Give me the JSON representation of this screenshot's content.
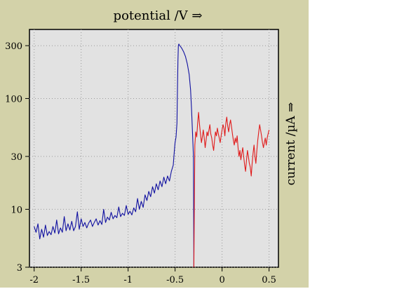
{
  "chart_data": {
    "type": "line",
    "xlabel": "potential /V ⇒",
    "ylabel": "current /µA ⇒",
    "y_scale": "log",
    "xlim": [
      -2.05,
      0.6
    ],
    "ylim": [
      3,
      420
    ],
    "grid": true,
    "x_ticks": [
      {
        "value": -2,
        "label": "-2"
      },
      {
        "value": -1.5,
        "label": "-1.5"
      },
      {
        "value": -1,
        "label": "-1"
      },
      {
        "value": -0.5,
        "label": "-0.5"
      },
      {
        "value": 0,
        "label": "0"
      },
      {
        "value": 0.5,
        "label": "0.5"
      }
    ],
    "y_ticks": [
      {
        "value": 3,
        "label": "3"
      },
      {
        "value": 10,
        "label": "10"
      },
      {
        "value": 30,
        "label": "30"
      },
      {
        "value": 100,
        "label": "100"
      },
      {
        "value": 300,
        "label": "300"
      }
    ],
    "series": [
      {
        "color": "#1010a0",
        "points": [
          [
            -2.0,
            7.0
          ],
          [
            -1.98,
            6.2
          ],
          [
            -1.96,
            7.4
          ],
          [
            -1.94,
            5.4
          ],
          [
            -1.92,
            6.6
          ],
          [
            -1.9,
            5.6
          ],
          [
            -1.88,
            7.2
          ],
          [
            -1.86,
            5.8
          ],
          [
            -1.84,
            6.3
          ],
          [
            -1.82,
            5.9
          ],
          [
            -1.8,
            7.0
          ],
          [
            -1.78,
            6.1
          ],
          [
            -1.76,
            8.0
          ],
          [
            -1.74,
            6.0
          ],
          [
            -1.72,
            6.8
          ],
          [
            -1.7,
            6.2
          ],
          [
            -1.68,
            8.6
          ],
          [
            -1.66,
            6.4
          ],
          [
            -1.64,
            7.4
          ],
          [
            -1.62,
            6.5
          ],
          [
            -1.6,
            7.8
          ],
          [
            -1.58,
            6.4
          ],
          [
            -1.56,
            7.0
          ],
          [
            -1.54,
            9.5
          ],
          [
            -1.52,
            6.6
          ],
          [
            -1.5,
            8.2
          ],
          [
            -1.48,
            7.0
          ],
          [
            -1.46,
            7.6
          ],
          [
            -1.44,
            6.8
          ],
          [
            -1.42,
            7.5
          ],
          [
            -1.4,
            8.0
          ],
          [
            -1.38,
            7.0
          ],
          [
            -1.36,
            7.6
          ],
          [
            -1.34,
            8.2
          ],
          [
            -1.32,
            7.2
          ],
          [
            -1.3,
            7.9
          ],
          [
            -1.28,
            7.3
          ],
          [
            -1.26,
            10.0
          ],
          [
            -1.24,
            7.6
          ],
          [
            -1.22,
            8.5
          ],
          [
            -1.2,
            8.0
          ],
          [
            -1.18,
            9.4
          ],
          [
            -1.16,
            8.2
          ],
          [
            -1.14,
            8.8
          ],
          [
            -1.12,
            8.4
          ],
          [
            -1.1,
            10.5
          ],
          [
            -1.08,
            8.6
          ],
          [
            -1.06,
            9.2
          ],
          [
            -1.04,
            8.8
          ],
          [
            -1.02,
            10.8
          ],
          [
            -1.0,
            9.0
          ],
          [
            -0.98,
            9.6
          ],
          [
            -0.96,
            8.9
          ],
          [
            -0.94,
            10.3
          ],
          [
            -0.92,
            9.5
          ],
          [
            -0.9,
            12.5
          ],
          [
            -0.88,
            10.0
          ],
          [
            -0.86,
            11.8
          ],
          [
            -0.84,
            10.4
          ],
          [
            -0.82,
            13.5
          ],
          [
            -0.8,
            12.0
          ],
          [
            -0.78,
            14.5
          ],
          [
            -0.76,
            13.0
          ],
          [
            -0.74,
            16.0
          ],
          [
            -0.72,
            14.0
          ],
          [
            -0.7,
            17.0
          ],
          [
            -0.68,
            15.0
          ],
          [
            -0.66,
            18.0
          ],
          [
            -0.64,
            16.0
          ],
          [
            -0.62,
            19.5
          ],
          [
            -0.6,
            17.0
          ],
          [
            -0.58,
            20.0
          ],
          [
            -0.56,
            18.0
          ],
          [
            -0.54,
            22.0
          ],
          [
            -0.52,
            25.0
          ],
          [
            -0.51,
            32.0
          ],
          [
            -0.5,
            40.0
          ],
          [
            -0.49,
            45.0
          ],
          [
            -0.48,
            60.0
          ],
          [
            -0.475,
            120.0
          ],
          [
            -0.47,
            220.0
          ],
          [
            -0.465,
            300.0
          ],
          [
            -0.46,
            310.0
          ],
          [
            -0.45,
            300.0
          ],
          [
            -0.43,
            285.0
          ],
          [
            -0.41,
            265.0
          ],
          [
            -0.39,
            240.0
          ],
          [
            -0.37,
            205.0
          ],
          [
            -0.35,
            165.0
          ],
          [
            -0.335,
            120.0
          ],
          [
            -0.325,
            80.0
          ],
          [
            -0.315,
            50.0
          ],
          [
            -0.305,
            30.0
          ],
          [
            -0.3,
            3.0
          ]
        ]
      },
      {
        "color": "#e01a1a",
        "points": [
          [
            -0.3,
            3.0
          ],
          [
            -0.29,
            38.0
          ],
          [
            -0.28,
            50.0
          ],
          [
            -0.27,
            45.0
          ],
          [
            -0.26,
            60.0
          ],
          [
            -0.25,
            75.0
          ],
          [
            -0.24,
            58.0
          ],
          [
            -0.23,
            48.0
          ],
          [
            -0.22,
            40.0
          ],
          [
            -0.21,
            45.0
          ],
          [
            -0.2,
            52.0
          ],
          [
            -0.19,
            44.0
          ],
          [
            -0.18,
            36.0
          ],
          [
            -0.17,
            42.0
          ],
          [
            -0.16,
            50.0
          ],
          [
            -0.15,
            46.0
          ],
          [
            -0.14,
            52.0
          ],
          [
            -0.13,
            58.0
          ],
          [
            -0.12,
            48.0
          ],
          [
            -0.11,
            44.0
          ],
          [
            -0.1,
            38.0
          ],
          [
            -0.09,
            34.0
          ],
          [
            -0.08,
            42.0
          ],
          [
            -0.07,
            50.0
          ],
          [
            -0.06,
            46.0
          ],
          [
            -0.05,
            54.0
          ],
          [
            -0.04,
            48.0
          ],
          [
            -0.03,
            44.0
          ],
          [
            -0.02,
            40.0
          ],
          [
            -0.01,
            46.0
          ],
          [
            0.0,
            52.0
          ],
          [
            0.01,
            58.0
          ],
          [
            0.02,
            54.0
          ],
          [
            0.03,
            46.0
          ],
          [
            0.04,
            60.0
          ],
          [
            0.05,
            68.0
          ],
          [
            0.06,
            56.0
          ],
          [
            0.07,
            50.0
          ],
          [
            0.08,
            58.0
          ],
          [
            0.09,
            64.0
          ],
          [
            0.1,
            56.0
          ],
          [
            0.11,
            48.0
          ],
          [
            0.12,
            42.0
          ],
          [
            0.13,
            38.0
          ],
          [
            0.14,
            44.0
          ],
          [
            0.15,
            40.0
          ],
          [
            0.16,
            46.0
          ],
          [
            0.17,
            36.0
          ],
          [
            0.18,
            30.0
          ],
          [
            0.19,
            34.0
          ],
          [
            0.2,
            28.0
          ],
          [
            0.21,
            32.0
          ],
          [
            0.22,
            36.0
          ],
          [
            0.23,
            30.0
          ],
          [
            0.24,
            25.0
          ],
          [
            0.25,
            22.0
          ],
          [
            0.26,
            28.0
          ],
          [
            0.27,
            34.0
          ],
          [
            0.28,
            30.0
          ],
          [
            0.29,
            26.0
          ],
          [
            0.3,
            24.0
          ],
          [
            0.31,
            20.0
          ],
          [
            0.32,
            26.0
          ],
          [
            0.33,
            32.0
          ],
          [
            0.34,
            38.0
          ],
          [
            0.35,
            30.0
          ],
          [
            0.36,
            26.0
          ],
          [
            0.37,
            34.0
          ],
          [
            0.38,
            42.0
          ],
          [
            0.39,
            50.0
          ],
          [
            0.4,
            58.0
          ],
          [
            0.41,
            52.0
          ],
          [
            0.42,
            46.0
          ],
          [
            0.43,
            40.0
          ],
          [
            0.44,
            36.0
          ],
          [
            0.45,
            40.0
          ],
          [
            0.46,
            44.0
          ],
          [
            0.47,
            38.0
          ],
          [
            0.48,
            44.0
          ],
          [
            0.49,
            48.0
          ],
          [
            0.5,
            52.0
          ]
        ]
      }
    ]
  }
}
